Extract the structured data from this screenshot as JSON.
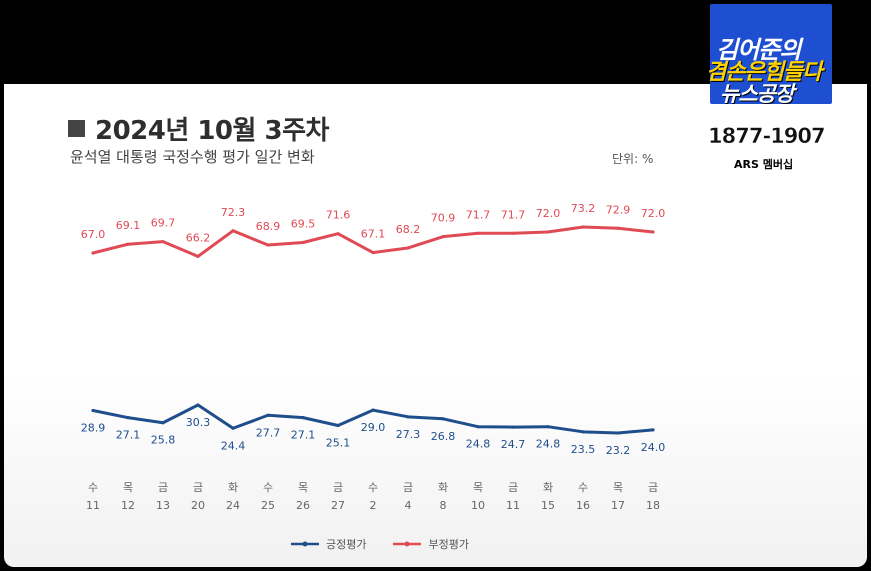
{
  "title": "2024년 10월 3주차",
  "subtitle": "윤석열 대통령 국정수행 평가 일간 변화",
  "unit": "단위: %",
  "logo": {
    "line1": "김어준의",
    "line2": "겸손은힘들다",
    "line3": "뉴스공장",
    "phone": "1877-1907",
    "ars": "ARS 멤버십"
  },
  "colors": {
    "approve": "#1f4e8c",
    "disapprove": "#e04a55"
  },
  "chart_data": {
    "type": "line",
    "categories": [
      "수\n11",
      "목\n12",
      "금\n13",
      "금\n20",
      "화\n24",
      "수\n25",
      "목\n26",
      "금\n27",
      "수\n2",
      "금\n4",
      "화\n8",
      "목\n10",
      "금\n11",
      "화\n15",
      "수\n16",
      "목\n17",
      "금\n18"
    ],
    "weekdays": [
      "수",
      "목",
      "금",
      "금",
      "화",
      "수",
      "목",
      "금",
      "수",
      "금",
      "화",
      "목",
      "금",
      "화",
      "수",
      "목",
      "금"
    ],
    "days": [
      "11",
      "12",
      "13",
      "20",
      "24",
      "25",
      "26",
      "27",
      "2",
      "4",
      "8",
      "10",
      "11",
      "15",
      "16",
      "17",
      "18"
    ],
    "series": [
      {
        "name": "긍정평가",
        "values": [
          28.9,
          27.1,
          25.8,
          30.3,
          24.4,
          27.7,
          27.1,
          25.1,
          29.0,
          27.3,
          26.8,
          24.8,
          24.7,
          24.8,
          23.5,
          23.2,
          24.0
        ]
      },
      {
        "name": "부정평가",
        "values": [
          67.0,
          69.1,
          69.7,
          66.2,
          72.3,
          68.9,
          69.5,
          71.6,
          67.1,
          68.2,
          70.9,
          71.7,
          71.7,
          72.0,
          73.2,
          72.9,
          72.0
        ]
      }
    ],
    "labels_approve": [
      "28.9",
      "27.1",
      "25.8",
      "30.3",
      "24.4",
      "27.7",
      "27.1",
      "25.1",
      "29.0",
      "27.3",
      "26.8",
      "24.8",
      "24.7",
      "24.8",
      "23.5",
      "23.2",
      "24.0"
    ],
    "labels_disapprove": [
      "67.0",
      "69.1",
      "69.7",
      "66.2",
      "72.3",
      "68.9",
      "69.5",
      "71.6",
      "67.1",
      "68.2",
      "70.9",
      "71.7",
      "71.7",
      "72.0",
      "73.2",
      "72.9",
      "72.0"
    ],
    "legend": [
      "긍정평가",
      "부정평가"
    ],
    "legend_position": "bottom-center",
    "grid": false
  }
}
